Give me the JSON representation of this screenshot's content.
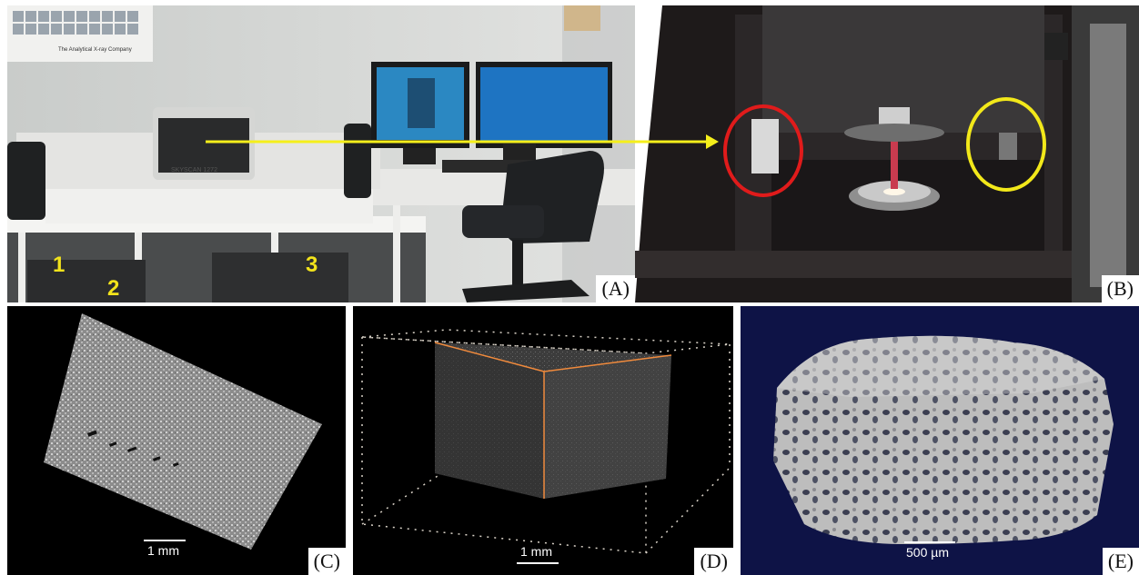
{
  "panels": {
    "a": {
      "label": "(A)",
      "numbers": [
        "1",
        "2",
        "3"
      ],
      "brand_text": "The Analytical X-ray Company",
      "device_text": "SKYSCAN 1272"
    },
    "b": {
      "label": "(B)"
    },
    "c": {
      "label": "(C)",
      "scale": "1 mm"
    },
    "d": {
      "label": "(D)",
      "scale": "1 mm"
    },
    "e": {
      "label": "(E)",
      "scale": "500 µm"
    }
  },
  "colors": {
    "arrow": "#f5ef1b",
    "circle_red": "#e01b1b",
    "circle_yellow": "#f2e81a",
    "panel_e_bg": "#0e1346",
    "render_d_edges": "#f08a3c"
  }
}
